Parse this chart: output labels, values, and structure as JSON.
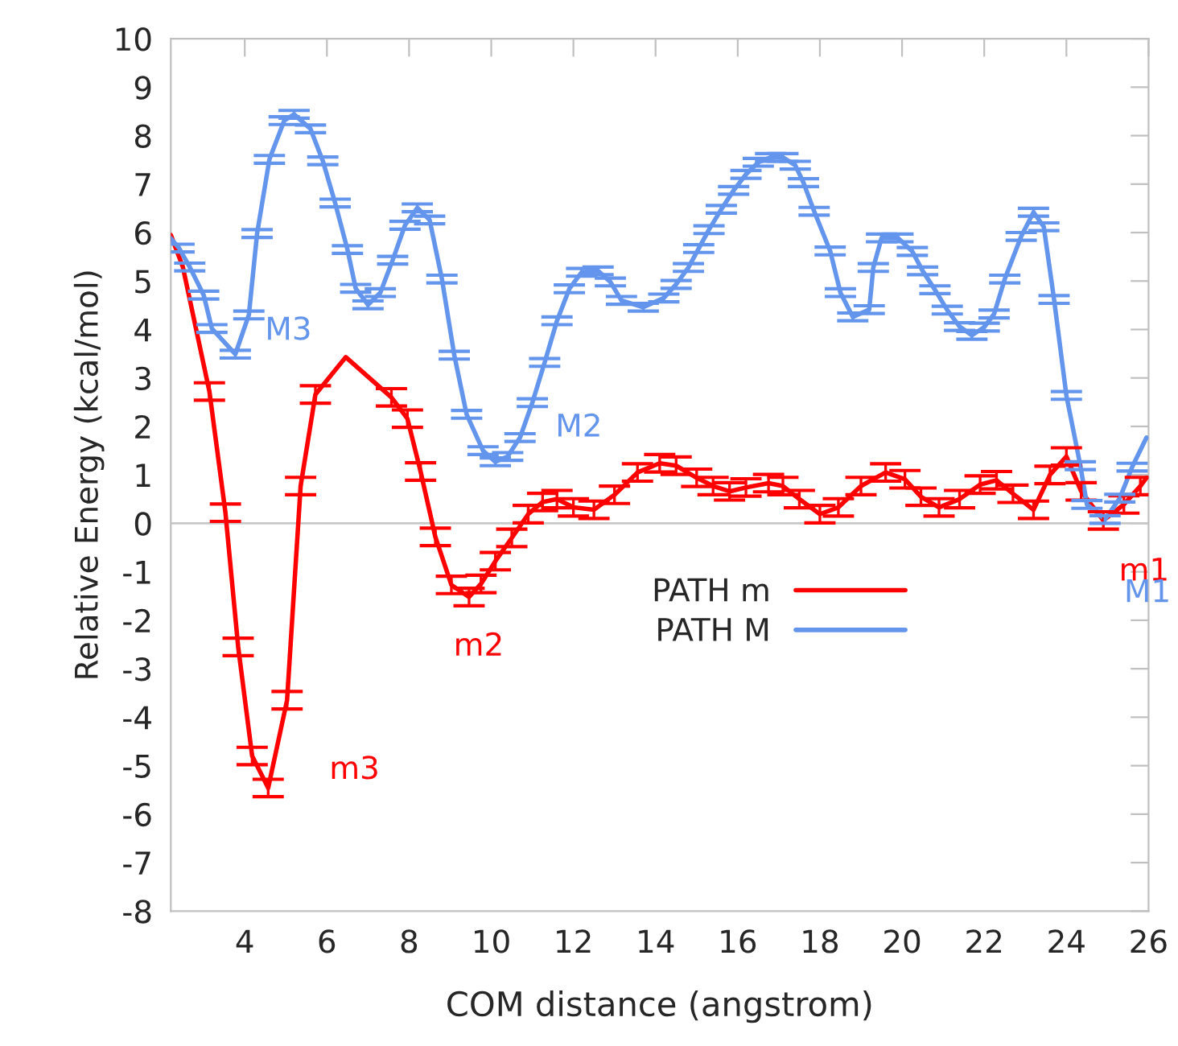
{
  "chart_data": {
    "type": "line",
    "xlabel": "COM distance (angstrom)",
    "ylabel": "Relative Energy (kcal/mol)",
    "xlim": [
      2.2,
      26
    ],
    "xticks": [
      4,
      6,
      8,
      10,
      12,
      14,
      16,
      18,
      20,
      22,
      24,
      26
    ],
    "ylim": [
      -8,
      10
    ],
    "yticks": [
      -8,
      -7,
      -6,
      -5,
      -4,
      -3,
      -2,
      -1,
      0,
      1,
      2,
      3,
      4,
      5,
      6,
      7,
      8,
      9,
      10
    ],
    "grid": false,
    "legend": "bottom right",
    "marker": "none",
    "line_style": "solid",
    "ref_lines": [
      {
        "axis": "y",
        "value": 0,
        "color": "#c8c8c8"
      }
    ],
    "series": [
      {
        "name": "PATH m",
        "color": "#ff0000",
        "x": [
          2.2,
          2.49,
          3.14,
          3.53,
          3.84,
          4.18,
          4.57,
          5.03,
          5.36,
          5.72,
          6.46,
          7.57,
          7.96,
          8.28,
          8.64,
          9.03,
          9.46,
          9.75,
          10.1,
          10.5,
          10.9,
          11.25,
          11.6,
          12.0,
          12.5,
          13.0,
          13.56,
          14.1,
          14.5,
          15.0,
          15.4,
          15.8,
          16.2,
          16.75,
          17.1,
          17.5,
          18.0,
          18.45,
          19.0,
          19.6,
          20.07,
          20.46,
          20.9,
          21.4,
          21.9,
          22.3,
          22.7,
          23.2,
          23.6,
          24.0,
          24.36,
          24.9,
          25.4,
          25.8,
          25.95
        ],
        "values": [
          5.95,
          5.3,
          2.72,
          0.22,
          -2.55,
          -4.8,
          -5.46,
          -3.65,
          0.77,
          2.66,
          3.43,
          2.6,
          2.16,
          1.07,
          -0.28,
          -1.27,
          -1.52,
          -1.25,
          -0.78,
          -0.3,
          0.19,
          0.44,
          0.5,
          0.33,
          0.28,
          0.59,
          1.05,
          1.24,
          1.19,
          0.94,
          0.77,
          0.66,
          0.74,
          0.83,
          0.77,
          0.5,
          0.19,
          0.33,
          0.77,
          1.05,
          0.91,
          0.55,
          0.33,
          0.5,
          0.8,
          0.89,
          0.61,
          0.28,
          1.0,
          1.38,
          0.66,
          0.06,
          0.39,
          0.77,
          0.94
        ],
        "errors": [
          null,
          null,
          0.18,
          0.18,
          0.18,
          0.18,
          0.18,
          0.18,
          0.18,
          0.18,
          null,
          0.18,
          0.18,
          0.18,
          0.18,
          0.18,
          0.18,
          0.18,
          0.18,
          0.18,
          0.18,
          0.18,
          0.18,
          0.18,
          0.18,
          0.18,
          0.18,
          0.18,
          0.18,
          0.18,
          0.18,
          0.18,
          0.18,
          0.18,
          0.18,
          0.18,
          0.18,
          0.18,
          0.18,
          0.18,
          0.18,
          0.18,
          0.18,
          0.18,
          0.18,
          0.18,
          0.18,
          0.18,
          0.18,
          0.18,
          0.18,
          0.18,
          0.18,
          0.18,
          null
        ]
      },
      {
        "name": "PATH M",
        "color": "#6495ed",
        "x": [
          2.2,
          2.4,
          2.66,
          3.0,
          3.2,
          3.77,
          4.1,
          4.3,
          4.6,
          4.96,
          5.2,
          5.6,
          5.9,
          6.2,
          6.5,
          6.7,
          7.0,
          7.3,
          7.6,
          7.9,
          8.2,
          8.5,
          8.8,
          9.1,
          9.4,
          9.8,
          10.1,
          10.4,
          10.7,
          11.0,
          11.3,
          11.6,
          11.9,
          12.2,
          12.6,
          12.9,
          13.17,
          13.7,
          14.2,
          14.5,
          14.8,
          15.05,
          15.3,
          15.6,
          15.9,
          16.2,
          16.5,
          16.8,
          17.1,
          17.4,
          17.6,
          17.86,
          18.25,
          18.5,
          18.8,
          19.2,
          19.3,
          19.5,
          19.9,
          20.25,
          20.5,
          20.8,
          21.1,
          21.4,
          21.7,
          22.0,
          22.24,
          22.5,
          22.9,
          23.2,
          23.45,
          23.7,
          24.0,
          24.34,
          24.5,
          24.94,
          25.3,
          25.6,
          25.95
        ],
        "values": [
          5.88,
          5.68,
          5.29,
          4.71,
          4.02,
          3.49,
          4.3,
          5.98,
          7.51,
          8.31,
          8.44,
          8.14,
          7.48,
          6.61,
          5.65,
          4.85,
          4.51,
          4.76,
          5.43,
          6.15,
          6.51,
          6.26,
          5.04,
          3.47,
          2.25,
          1.5,
          1.27,
          1.38,
          1.77,
          2.49,
          3.32,
          4.18,
          4.84,
          5.18,
          5.21,
          4.98,
          4.6,
          4.46,
          4.65,
          4.93,
          5.28,
          5.67,
          6.06,
          6.48,
          6.87,
          7.2,
          7.45,
          7.55,
          7.55,
          7.39,
          7.03,
          6.44,
          5.62,
          4.76,
          4.26,
          4.41,
          5.28,
          5.89,
          5.89,
          5.61,
          5.21,
          4.82,
          4.4,
          4.06,
          3.88,
          4.05,
          4.32,
          5.04,
          5.92,
          6.42,
          6.12,
          4.62,
          2.64,
          1.19,
          0.39,
          0.08,
          0.52,
          1.16,
          1.77
        ],
        "errors": [
          null,
          0.08,
          0.08,
          0.08,
          0.08,
          0.08,
          0.08,
          0.08,
          0.08,
          0.08,
          0.08,
          0.08,
          0.08,
          0.08,
          0.08,
          0.08,
          0.08,
          0.08,
          0.08,
          0.08,
          0.08,
          0.08,
          0.08,
          0.08,
          0.08,
          0.08,
          0.08,
          0.08,
          0.08,
          0.08,
          0.08,
          0.08,
          0.08,
          0.08,
          0.08,
          0.08,
          0.08,
          0.08,
          0.08,
          0.08,
          0.08,
          0.08,
          0.08,
          0.08,
          0.08,
          0.08,
          0.08,
          0.08,
          0.08,
          0.08,
          0.08,
          0.08,
          0.08,
          0.08,
          0.08,
          0.08,
          0.08,
          0.08,
          0.08,
          0.08,
          0.08,
          0.08,
          0.08,
          0.08,
          0.08,
          0.08,
          0.08,
          0.08,
          0.08,
          0.08,
          0.08,
          0.08,
          0.08,
          0.08,
          0.08,
          0.08,
          0.08,
          0.08,
          null
        ]
      }
    ],
    "annotations": [
      {
        "text": "M3",
        "x": 4.1,
        "y": 4.3
      },
      {
        "text": "M2",
        "x": 10.7,
        "y": 1.77
      },
      {
        "text": "m3",
        "x": 4.57,
        "y": -5.46
      },
      {
        "text": "m2",
        "x": 9.46,
        "y": -1.52
      },
      {
        "text": "m1",
        "x": 24.9,
        "y": 0.06
      },
      {
        "text": "M1",
        "x": 24.94,
        "y": 0.08
      }
    ]
  }
}
